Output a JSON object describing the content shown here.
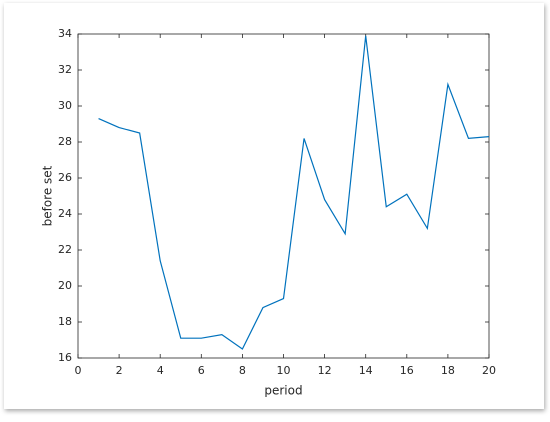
{
  "chart_data": {
    "type": "line",
    "x": [
      1,
      2,
      3,
      4,
      5,
      6,
      7,
      8,
      9,
      10,
      11,
      12,
      13,
      14,
      15,
      16,
      17,
      18,
      19,
      20
    ],
    "series": [
      {
        "color": "#0072bd",
        "values": [
          29.3,
          28.8,
          28.5,
          21.4,
          17.1,
          17.1,
          17.3,
          16.5,
          18.8,
          19.3,
          28.2,
          24.8,
          22.9,
          33.9,
          24.4,
          25.1,
          23.2,
          31.2,
          28.2,
          28.3
        ]
      }
    ],
    "xlabel": "period",
    "ylabel": "before set",
    "xlim": [
      0,
      20
    ],
    "xticks": [
      0,
      2,
      4,
      6,
      8,
      10,
      12,
      14,
      16,
      18,
      20
    ],
    "ylim": [
      16,
      34
    ],
    "yticks": [
      16,
      18,
      20,
      22,
      24,
      26,
      28,
      30,
      32,
      34
    ]
  }
}
